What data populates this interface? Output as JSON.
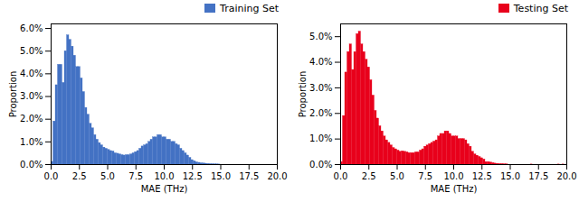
{
  "chart_data": [
    {
      "type": "histogram",
      "xlabel": "MAE (THz)",
      "ylabel": "Proportion",
      "bins": [
        0,
        0.2,
        0.4,
        0.6,
        0.8,
        1,
        1.2,
        1.4,
        1.6,
        1.8,
        2,
        2.2,
        2.4,
        2.6,
        2.8,
        3,
        3.2,
        3.4,
        3.6,
        3.8,
        4,
        4.2,
        4.4,
        4.6,
        4.8,
        5,
        5.2,
        5.4,
        5.6,
        5.8,
        6,
        6.2,
        6.4,
        6.6,
        6.8,
        7,
        7.2,
        7.4,
        7.6,
        7.8,
        8,
        8.2,
        8.4,
        8.6,
        8.8,
        9,
        9.2,
        9.4,
        9.6,
        9.8,
        10,
        10.2,
        10.4,
        10.6,
        10.8,
        11,
        11.2,
        11.4,
        11.6,
        11.8,
        12,
        12.2,
        12.4,
        12.6,
        12.8,
        13,
        13.2,
        13.4,
        13.6,
        13.8,
        14,
        14.2,
        14.4,
        14.6,
        14.8,
        15,
        15.2,
        15.4,
        15.6,
        15.8,
        16,
        16.2,
        16.4,
        16.6,
        16.8,
        17,
        17.2,
        17.4,
        17.6,
        17.8,
        18,
        18.2,
        18.4,
        18.6,
        18.8,
        19,
        19.2,
        19.4,
        19.6,
        19.8,
        20
      ],
      "series": [
        {
          "name": "Training Set",
          "color": "#4472c4",
          "values": [
            0.0012,
            0.019,
            0.035,
            0.044,
            0.044,
            0.036,
            0.05,
            0.057,
            0.055,
            0.052,
            0.048,
            0.043,
            0.043,
            0.038,
            0.032,
            0.025,
            0.022,
            0.018,
            0.016,
            0.013,
            0.011,
            0.0095,
            0.0085,
            0.0075,
            0.007,
            0.0065,
            0.006,
            0.0058,
            0.005,
            0.0048,
            0.0045,
            0.0042,
            0.004,
            0.0042,
            0.0042,
            0.0045,
            0.005,
            0.0055,
            0.006,
            0.007,
            0.008,
            0.0085,
            0.009,
            0.01,
            0.011,
            0.012,
            0.012,
            0.013,
            0.013,
            0.012,
            0.012,
            0.011,
            0.011,
            0.01,
            0.01,
            0.009,
            0.0085,
            0.007,
            0.006,
            0.005,
            0.004,
            0.003,
            0.002,
            0.0015,
            0.001,
            0.0008,
            0.0006,
            0.0005,
            0.0004,
            0.0003,
            0.0002,
            0.00015,
            0.0001,
            7e-05,
            5e-05,
            0.0,
            0.0,
            0.0,
            0.0,
            0.0,
            0.0,
            0.0,
            0.0,
            0.0,
            0.0,
            0.0,
            0.0,
            0.0,
            0.0,
            0.0,
            0.0,
            0.0,
            0.0,
            0.0,
            0.0,
            0.0,
            0.0,
            0.0,
            0.0,
            0.0
          ]
        }
      ],
      "legend": "upper right",
      "xlim": [
        0,
        20
      ],
      "xticks": [
        {
          "value": 0,
          "label": "0.0"
        },
        2.5,
        {
          "value": 5,
          "label": "5.0"
        },
        7.5,
        {
          "value": 10,
          "label": "10.0"
        },
        12.5,
        {
          "value": 15,
          "label": "15.0"
        },
        17.5,
        {
          "value": 20,
          "label": "20.0"
        }
      ],
      "ylim": [
        0,
        0.062
      ],
      "yticks": [
        {
          "value": 0,
          "label": "0.0%"
        },
        {
          "value": 0.01,
          "label": "1.0%"
        },
        {
          "value": 0.02,
          "label": "2.0%"
        },
        {
          "value": 0.03,
          "label": "3.0%"
        },
        {
          "value": 0.04,
          "label": "4.0%"
        },
        {
          "value": 0.05,
          "label": "5.0%"
        },
        {
          "value": 0.06,
          "label": "6.0%"
        }
      ]
    },
    {
      "type": "histogram",
      "xlabel": "MAE (THz)",
      "ylabel": "Proportion",
      "bins": [
        0,
        0.2,
        0.4,
        0.6,
        0.8,
        1,
        1.2,
        1.4,
        1.6,
        1.8,
        2,
        2.2,
        2.4,
        2.6,
        2.8,
        3,
        3.2,
        3.4,
        3.6,
        3.8,
        4,
        4.2,
        4.4,
        4.6,
        4.8,
        5,
        5.2,
        5.4,
        5.6,
        5.8,
        6,
        6.2,
        6.4,
        6.6,
        6.8,
        7,
        7.2,
        7.4,
        7.6,
        7.8,
        8,
        8.2,
        8.4,
        8.6,
        8.8,
        9,
        9.2,
        9.4,
        9.6,
        9.8,
        10,
        10.2,
        10.4,
        10.6,
        10.8,
        11,
        11.2,
        11.4,
        11.6,
        11.8,
        12,
        12.2,
        12.4,
        12.6,
        12.8,
        13,
        13.2,
        13.4,
        13.6,
        13.8,
        14,
        14.2,
        14.4,
        14.6,
        14.8,
        15,
        15.2,
        15.4,
        15.6,
        15.8,
        16,
        16.2,
        16.4,
        16.6,
        16.8,
        17,
        17.2,
        17.4,
        17.6,
        17.8,
        18,
        18.2,
        18.4,
        18.6,
        18.8,
        19,
        19.2,
        19.4,
        19.6,
        19.8,
        20
      ],
      "series": [
        {
          "name": "Testing Set",
          "color": "#e8001c",
          "values": [
            0.001,
            0.019,
            0.036,
            0.044,
            0.047,
            0.037,
            0.044,
            0.051,
            0.052,
            0.047,
            0.044,
            0.041,
            0.038,
            0.033,
            0.027,
            0.021,
            0.018,
            0.015,
            0.013,
            0.011,
            0.0095,
            0.0085,
            0.0075,
            0.0065,
            0.006,
            0.0055,
            0.005,
            0.0052,
            0.005,
            0.0048,
            0.0045,
            0.0045,
            0.0045,
            0.0048,
            0.0048,
            0.0055,
            0.006,
            0.007,
            0.0075,
            0.008,
            0.0085,
            0.009,
            0.0095,
            0.011,
            0.012,
            0.012,
            0.013,
            0.013,
            0.012,
            0.011,
            0.011,
            0.011,
            0.01,
            0.01,
            0.01,
            0.0095,
            0.008,
            0.007,
            0.005,
            0.004,
            0.0035,
            0.003,
            0.0025,
            0.002,
            0.001,
            0.001,
            0.0008,
            0.0006,
            0.0004,
            0.0003,
            0.0002,
            0.0002,
            0.0001,
            7e-05,
            0.0,
            0.0,
            0.0,
            0.0,
            0.0,
            0.0,
            0.0,
            0.0,
            0.0,
            0.0,
            5e-05,
            0.0,
            0.0,
            0.0,
            0.0,
            0.0,
            0.0,
            0.0,
            0.0,
            0.0,
            0.0,
            0.0,
            5e-05,
            0.0,
            5e-05,
            0.0
          ]
        }
      ],
      "legend": "upper right",
      "xlim": [
        0,
        20
      ],
      "xticks": [
        {
          "value": 0,
          "label": "0.0"
        },
        2.5,
        {
          "value": 5,
          "label": "5.0"
        },
        7.5,
        {
          "value": 10,
          "label": "10.0"
        },
        12.5,
        {
          "value": 15,
          "label": "15.0"
        },
        17.5,
        {
          "value": 20,
          "label": "20.0"
        }
      ],
      "ylim": [
        0,
        0.055
      ],
      "yticks": [
        {
          "value": 0,
          "label": "0.0%"
        },
        {
          "value": 0.01,
          "label": "1.0%"
        },
        {
          "value": 0.02,
          "label": "2.0%"
        },
        {
          "value": 0.03,
          "label": "3.0%"
        },
        {
          "value": 0.04,
          "label": "4.0%"
        },
        {
          "value": 0.05,
          "label": "5.0%"
        }
      ]
    }
  ]
}
